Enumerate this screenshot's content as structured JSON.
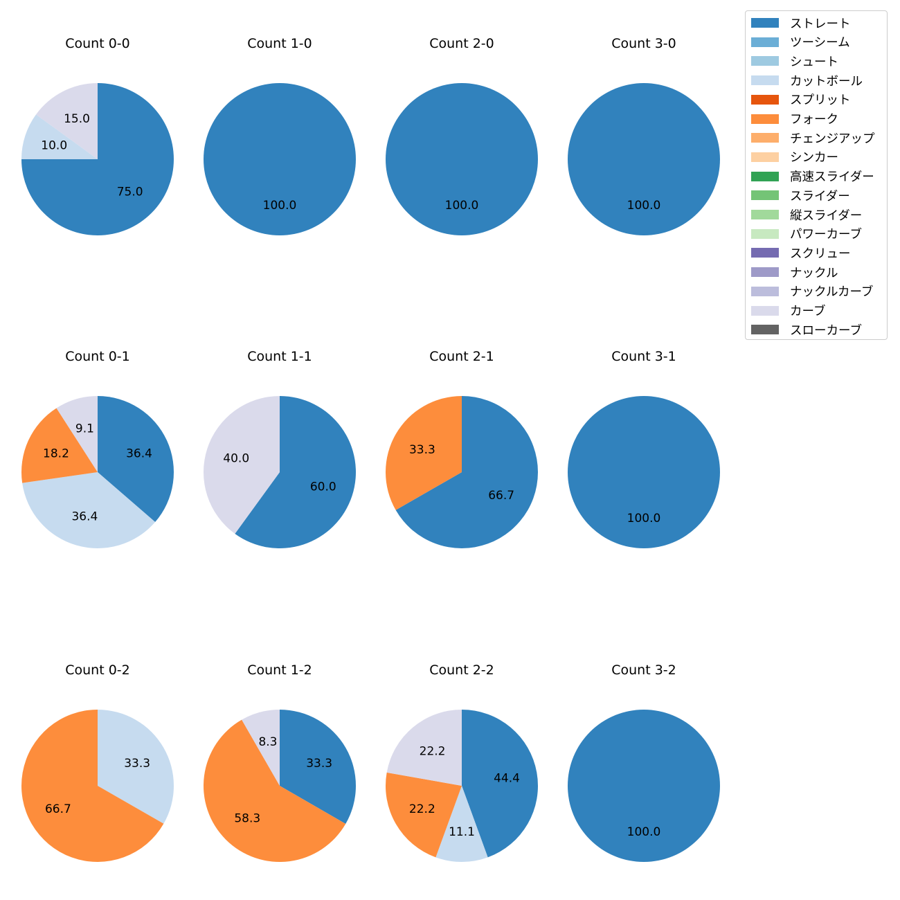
{
  "chart_data": [
    {
      "type": "pie",
      "title": "Count 0-0",
      "slices": [
        {
          "label": "ストレート",
          "value": 75.0,
          "color": "#3182bd"
        },
        {
          "label": "カットボール",
          "value": 10.0,
          "color": "#c6dbef"
        },
        {
          "label": "カーブ",
          "value": 15.0,
          "color": "#dadaeb"
        }
      ]
    },
    {
      "type": "pie",
      "title": "Count 1-0",
      "slices": [
        {
          "label": "ストレート",
          "value": 100.0,
          "color": "#3182bd"
        }
      ]
    },
    {
      "type": "pie",
      "title": "Count 2-0",
      "slices": [
        {
          "label": "ストレート",
          "value": 100.0,
          "color": "#3182bd"
        }
      ]
    },
    {
      "type": "pie",
      "title": "Count 3-0",
      "slices": [
        {
          "label": "ストレート",
          "value": 100.0,
          "color": "#3182bd"
        }
      ]
    },
    {
      "type": "pie",
      "title": "Count 0-1",
      "slices": [
        {
          "label": "ストレート",
          "value": 36.4,
          "color": "#3182bd"
        },
        {
          "label": "カットボール",
          "value": 36.4,
          "color": "#c6dbef"
        },
        {
          "label": "フォーク",
          "value": 18.2,
          "color": "#fd8d3c"
        },
        {
          "label": "カーブ",
          "value": 9.1,
          "color": "#dadaeb"
        }
      ]
    },
    {
      "type": "pie",
      "title": "Count 1-1",
      "slices": [
        {
          "label": "ストレート",
          "value": 60.0,
          "color": "#3182bd"
        },
        {
          "label": "カーブ",
          "value": 40.0,
          "color": "#dadaeb"
        }
      ]
    },
    {
      "type": "pie",
      "title": "Count 2-1",
      "slices": [
        {
          "label": "ストレート",
          "value": 66.7,
          "color": "#3182bd"
        },
        {
          "label": "フォーク",
          "value": 33.3,
          "color": "#fd8d3c"
        }
      ]
    },
    {
      "type": "pie",
      "title": "Count 3-1",
      "slices": [
        {
          "label": "ストレート",
          "value": 100.0,
          "color": "#3182bd"
        }
      ]
    },
    {
      "type": "pie",
      "title": "Count 0-2",
      "slices": [
        {
          "label": "カットボール",
          "value": 33.3,
          "color": "#c6dbef"
        },
        {
          "label": "フォーク",
          "value": 66.7,
          "color": "#fd8d3c"
        }
      ]
    },
    {
      "type": "pie",
      "title": "Count 1-2",
      "slices": [
        {
          "label": "ストレート",
          "value": 33.3,
          "color": "#3182bd"
        },
        {
          "label": "フォーク",
          "value": 58.3,
          "color": "#fd8d3c"
        },
        {
          "label": "カーブ",
          "value": 8.3,
          "color": "#dadaeb"
        }
      ]
    },
    {
      "type": "pie",
      "title": "Count 2-2",
      "slices": [
        {
          "label": "ストレート",
          "value": 44.4,
          "color": "#3182bd"
        },
        {
          "label": "カットボール",
          "value": 11.1,
          "color": "#c6dbef"
        },
        {
          "label": "フォーク",
          "value": 22.2,
          "color": "#fd8d3c"
        },
        {
          "label": "カーブ",
          "value": 22.2,
          "color": "#dadaeb"
        }
      ]
    },
    {
      "type": "pie",
      "title": "Count 3-2",
      "slices": [
        {
          "label": "ストレート",
          "value": 100.0,
          "color": "#3182bd"
        }
      ]
    }
  ],
  "legend": {
    "placement": "top-right",
    "items": [
      {
        "label": "ストレート",
        "color": "#3182bd"
      },
      {
        "label": "ツーシーム",
        "color": "#6baed6"
      },
      {
        "label": "シュート",
        "color": "#9ecae1"
      },
      {
        "label": "カットボール",
        "color": "#c6dbef"
      },
      {
        "label": "スプリット",
        "color": "#e6550d"
      },
      {
        "label": "フォーク",
        "color": "#fd8d3c"
      },
      {
        "label": "チェンジアップ",
        "color": "#fdae6b"
      },
      {
        "label": "シンカー",
        "color": "#fdd0a2"
      },
      {
        "label": "高速スライダー",
        "color": "#31a354"
      },
      {
        "label": "スライダー",
        "color": "#74c476"
      },
      {
        "label": "縦スライダー",
        "color": "#a1d99b"
      },
      {
        "label": "パワーカーブ",
        "color": "#c7e9c0"
      },
      {
        "label": "スクリュー",
        "color": "#756bb1"
      },
      {
        "label": "ナックル",
        "color": "#9e9ac8"
      },
      {
        "label": "ナックルカーブ",
        "color": "#bcbddc"
      },
      {
        "label": "カーブ",
        "color": "#dadaeb"
      },
      {
        "label": "スローカーブ",
        "color": "#636363"
      }
    ]
  }
}
